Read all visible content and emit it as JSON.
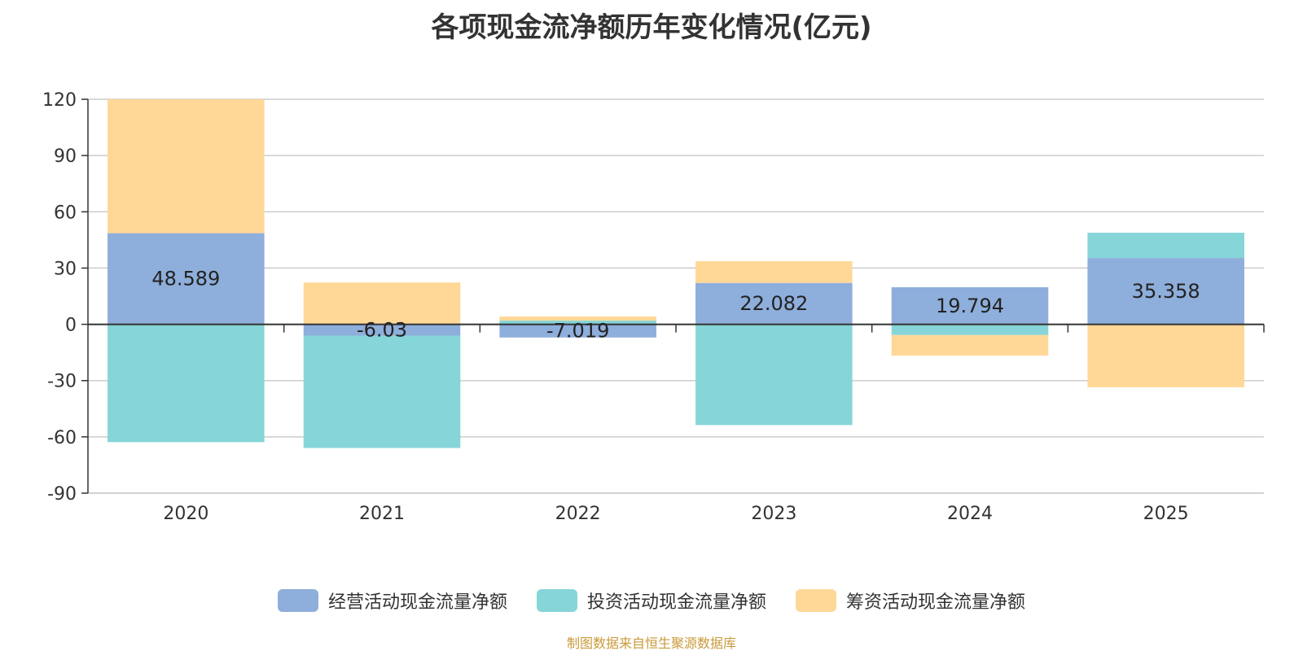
{
  "chart_data": {
    "type": "bar",
    "stacked": true,
    "title": "各项现金流净额历年变化情况(亿元)",
    "categories": [
      "2020",
      "2021",
      "2022",
      "2023",
      "2024",
      "2025"
    ],
    "series": [
      {
        "name": "经营活动现金流量净额",
        "color": "#8eaedb",
        "values": [
          48.589,
          -6.03,
          -7.019,
          22.082,
          19.794,
          35.358
        ],
        "labels": [
          "48.589",
          "-6.03",
          "-7.019",
          "22.082",
          "19.794",
          "35.358"
        ]
      },
      {
        "name": "投资活动现金流量净额",
        "color": "#86d5d8",
        "values": [
          -62.8,
          -59.9,
          2.0,
          -53.7,
          -5.7,
          13.5
        ]
      },
      {
        "name": "筹资活动现金流量净额",
        "color": "#ffd898",
        "values": [
          71.4,
          22.3,
          2.2,
          11.6,
          -11.0,
          -33.6
        ]
      }
    ],
    "ylim": [
      -90,
      120
    ],
    "yticks": [
      120,
      90,
      60,
      30,
      0,
      -30,
      -60,
      -90
    ],
    "grid": true,
    "legend_position": "bottom-center"
  },
  "source_note": "制图数据来自恒生聚源数据库"
}
